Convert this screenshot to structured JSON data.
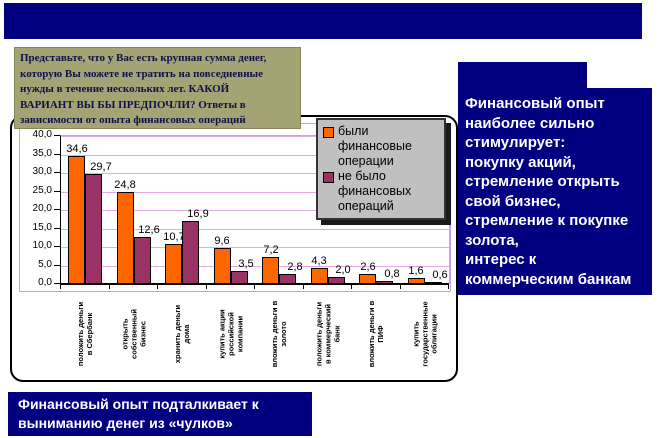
{
  "slide": {
    "top_banner_color": "#000080",
    "question_box": {
      "bg": "#A3A373",
      "text": "Представьте, что у Вас есть крупная сумма денег,\nкоторую Вы можете не тратить на повседневные\nнужды в течение нескольких лет. КАКОЙ\nВАРИАНТ ВЫ БЫ ПРЕДПОЧЛИ? Ответы в\nзависимости от опыта финансовых операций"
    },
    "right_note": {
      "bg": "#000080",
      "text": "Финансовый опыт\nнаиболее сильно\nстимулирует:\nпокупку акций,\nстремление открыть\nсвой бизнес,\nстремление к покупке\nзолота,\nинтерес к\nкоммерческим банкам"
    },
    "bottom_note": {
      "bg": "#000080",
      "text": "Финансовый опыт подталкивает к\nвыниманию денег из «чулков»"
    }
  },
  "chart_data": {
    "type": "bar",
    "title": "",
    "categories": [
      "положить деньги\nв Сбербанк",
      "открыть\nсобственный\nбизнес",
      "хранить деньги\nдома",
      "купить акции\nроссийской\nкомпании",
      "вложить деньги в\nзолото",
      "положить деньги\nв коммерческий\nбанк",
      "вложить деньги в\nПИФ",
      "купить\nгосударственные\nоблигации"
    ],
    "series": [
      {
        "name": "были финансовые операции",
        "color": "#FF6600",
        "values": [
          34.6,
          24.8,
          10.7,
          9.6,
          7.2,
          4.3,
          2.6,
          1.6
        ]
      },
      {
        "name": "не было финансовых операций",
        "color": "#993366",
        "values": [
          29.7,
          12.6,
          16.9,
          3.5,
          2.8,
          2.0,
          0.8,
          0.6
        ]
      }
    ],
    "ylim": [
      0,
      40
    ],
    "ytick_step": 5,
    "decimal_separator": ",",
    "grid": true,
    "legend_position": "top-right",
    "colors": {
      "gridline": "#E2AAE2",
      "plot_border": "#C9A0E8",
      "axis": "#000000",
      "legend_bg": "#C0C0C0"
    }
  }
}
